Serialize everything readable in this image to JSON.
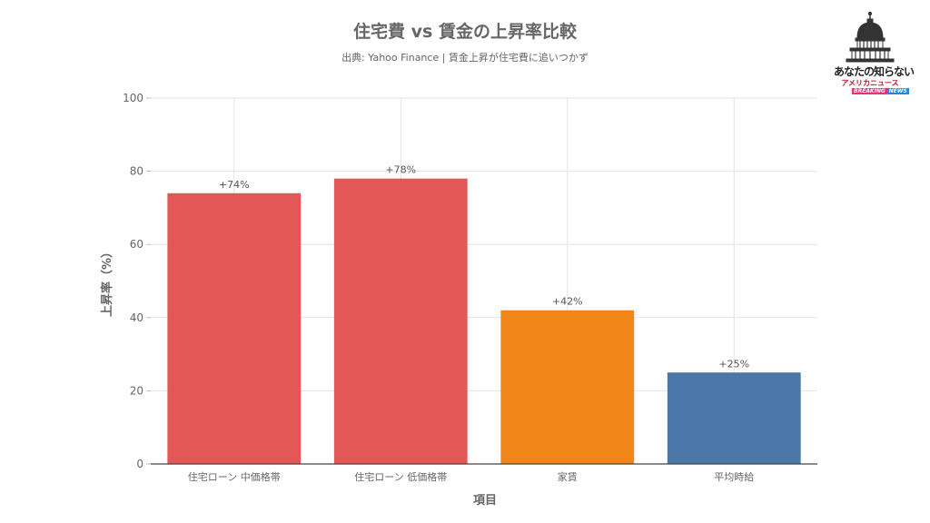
{
  "title": "住宅費 vs 賃金の上昇率比較",
  "subtitle": "出典: Yahoo Finance | 賃金上昇が住宅費に追いつかず",
  "logo": {
    "line1": "あなたの知らない",
    "line2": "アメリカニュース",
    "badge_left": "BREAKING",
    "badge_right": "NEWS"
  },
  "colors": {
    "red": "#e35757",
    "orange": "#f28518",
    "blue": "#4a76a8",
    "grid": "#e4e4e4",
    "axis_text": "#666666"
  },
  "chart_data": {
    "type": "bar",
    "title": "住宅費 vs 賃金の上昇率比較",
    "subtitle": "出典: Yahoo Finance | 賃金上昇が住宅費に追いつかず",
    "xlabel": "項目",
    "ylabel": "上昇率（%）",
    "ylim": [
      0,
      100
    ],
    "yticks": [
      "0",
      "20",
      "40",
      "60",
      "80",
      "100"
    ],
    "grid": true,
    "categories": [
      "住宅ローン 中価格帯",
      "住宅ローン 低価格帯",
      "家賃",
      "平均時給"
    ],
    "values": [
      74,
      78,
      42,
      25
    ],
    "data_labels": [
      "+74%",
      "+78%",
      "+42%",
      "+25%"
    ],
    "bar_colors": [
      "#e35757",
      "#e35757",
      "#f28518",
      "#4a76a8"
    ]
  }
}
